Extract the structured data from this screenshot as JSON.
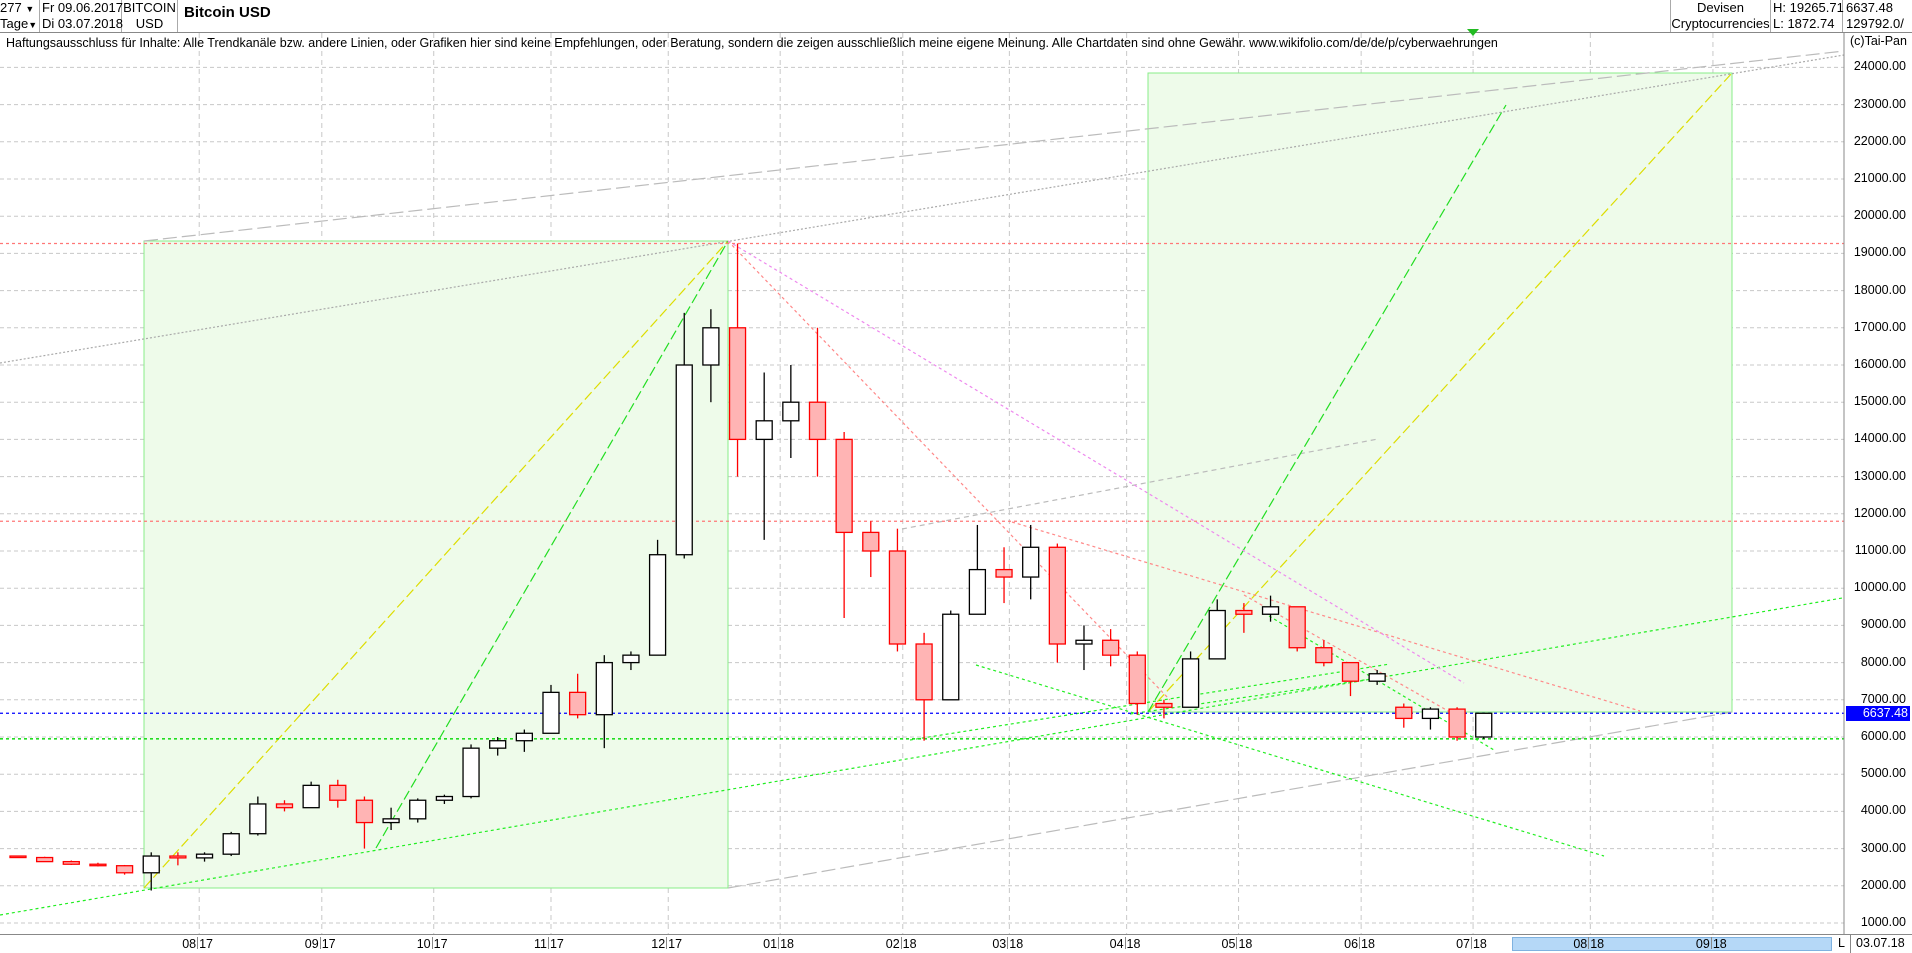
{
  "header": {
    "count": "277",
    "period": "Tage",
    "from_date": "Fr 09.06.2017",
    "to_date": "Di 03.07.2018",
    "symbol_line1": "BITCOIN",
    "symbol_line2": "USD",
    "title": "Bitcoin USD",
    "category1": "Devisen",
    "category2": "Cryptocurrencies",
    "high": "H: 19265.71",
    "low": "L: 1872.74",
    "last": "6637.48",
    "volume": "129792.0/"
  },
  "disclaimer": "Haftungsausschluss für Inhalte: Alle Trendkanäle bzw. andere Linien, oder Grafiken hier sind keine Empfehlungen, oder Beratung, sondern die zeigen ausschließlich meine eigene Meinung. Alle Chartdaten sind ohne Gewähr.  www.wikifolio.com/de/de/p/cyberwaehrungen",
  "copyright": "(c)Tai-Pan",
  "footer": {
    "range_flag": "L",
    "end_date": "03.07.18"
  },
  "colors": {
    "up": "#000000",
    "down": "#ff0000",
    "down_fill": "#ffb4b4",
    "last_price": "#0000ff",
    "box": "#e8fbe6"
  },
  "chart_data": {
    "type": "candlestick",
    "title": "Bitcoin USD",
    "start_date": "09.06.17",
    "ylim": [
      1000,
      24000
    ],
    "grid": true,
    "yticks": [
      "24000.00",
      "23000.00",
      "22000.00",
      "21000.00",
      "20000.00",
      "19000.00",
      "18000.00",
      "17000.00",
      "16000.00",
      "15000.00",
      "14000.00",
      "13000.00",
      "12000.00",
      "11000.00",
      "10000.00",
      "9000.00",
      "8000.00",
      "7000.00",
      "6000.00",
      "5000.00",
      "4000.00",
      "3000.00",
      "2000.00",
      "1000.00"
    ],
    "xticks": [
      {
        "m": "08",
        "y": "17",
        "date": "01.08.17"
      },
      {
        "m": "09",
        "y": "17",
        "date": "01.09.17"
      },
      {
        "m": "10",
        "y": "17",
        "date": "02.10.17"
      },
      {
        "m": "11",
        "y": "17",
        "date": "01.11.17"
      },
      {
        "m": "12",
        "y": "17",
        "date": "01.12.17"
      },
      {
        "m": "01",
        "y": "18",
        "date": "01.01.18"
      },
      {
        "m": "02",
        "y": "18",
        "date": "01.02.18"
      },
      {
        "m": "03",
        "y": "18",
        "date": "01.03.18"
      },
      {
        "m": "04",
        "y": "18",
        "date": "02.04.18"
      },
      {
        "m": "05",
        "y": "18",
        "date": "01.05.18"
      },
      {
        "m": "06",
        "y": "18",
        "date": "01.06.18"
      },
      {
        "m": "07",
        "y": "18",
        "date": "02.07.18"
      },
      {
        "m": "08",
        "y": "18",
        "date": "01.08.18"
      },
      {
        "m": "09",
        "y": "18",
        "date": "03.09.18"
      }
    ],
    "last_price": "6637.48",
    "hlines": [
      19265.71,
      11800,
      6637.48,
      5950
    ],
    "candles_columns": [
      "week",
      "open",
      "high",
      "low",
      "close"
    ],
    "candles": [
      [
        "12.06.17",
        2800,
        2800,
        2750,
        2760
      ],
      [
        "19.06.17",
        2760,
        2780,
        2640,
        2650
      ],
      [
        "26.06.17",
        2650,
        2680,
        2560,
        2580
      ],
      [
        "03.07.17",
        2580,
        2620,
        2520,
        2540
      ],
      [
        "10.07.17",
        2540,
        2560,
        2300,
        2350
      ],
      [
        "17.07.17",
        2350,
        2900,
        1873,
        2800
      ],
      [
        "24.07.17",
        2800,
        2900,
        2550,
        2750
      ],
      [
        "31.07.17",
        2750,
        2900,
        2650,
        2850
      ],
      [
        "07.08.17",
        2850,
        3450,
        2800,
        3400
      ],
      [
        "14.08.17",
        3400,
        4400,
        3350,
        4200
      ],
      [
        "21.08.17",
        4200,
        4300,
        4000,
        4100
      ],
      [
        "28.08.17",
        4100,
        4800,
        4100,
        4700
      ],
      [
        "04.09.17",
        4700,
        4850,
        4100,
        4300
      ],
      [
        "11.09.17",
        4300,
        4400,
        3000,
        3700
      ],
      [
        "18.09.17",
        3700,
        4100,
        3500,
        3800
      ],
      [
        "25.09.17",
        3800,
        4350,
        3700,
        4300
      ],
      [
        "02.10.17",
        4300,
        4450,
        4200,
        4400
      ],
      [
        "09.10.17",
        4400,
        5800,
        4350,
        5700
      ],
      [
        "16.10.17",
        5700,
        6000,
        5500,
        5900
      ],
      [
        "23.10.17",
        5900,
        6200,
        5600,
        6100
      ],
      [
        "30.10.17",
        6100,
        7400,
        6100,
        7200
      ],
      [
        "06.11.17",
        7200,
        7700,
        6500,
        6600
      ],
      [
        "13.11.17",
        6600,
        8200,
        5700,
        8000
      ],
      [
        "20.11.17",
        8000,
        8300,
        7800,
        8200
      ],
      [
        "27.11.17",
        8200,
        11300,
        8200,
        10900
      ],
      [
        "04.12.17",
        10900,
        17400,
        10800,
        16000
      ],
      [
        "11.12.17",
        16000,
        17500,
        15000,
        17000
      ],
      [
        "18.12.17",
        17000,
        19265.71,
        13000,
        14000
      ],
      [
        "25.12.17",
        14000,
        15800,
        11300,
        14500
      ],
      [
        "01.01.18",
        14500,
        16000,
        13500,
        15000
      ],
      [
        "08.01.18",
        15000,
        17000,
        13000,
        14000
      ],
      [
        "15.01.18",
        14000,
        14200,
        9200,
        11500
      ],
      [
        "22.01.18",
        11500,
        11800,
        10300,
        11000
      ],
      [
        "29.01.18",
        11000,
        11600,
        8300,
        8500
      ],
      [
        "05.02.18",
        8500,
        8800,
        5900,
        7000
      ],
      [
        "12.02.18",
        7000,
        9400,
        7000,
        9300
      ],
      [
        "19.02.18",
        9300,
        11700,
        9300,
        10500
      ],
      [
        "26.02.18",
        10500,
        11100,
        9600,
        10300
      ],
      [
        "05.03.18",
        10300,
        11700,
        9700,
        11100
      ],
      [
        "12.03.18",
        11100,
        11200,
        8000,
        8500
      ],
      [
        "19.03.18",
        8500,
        9000,
        7800,
        8600
      ],
      [
        "26.03.18",
        8600,
        8900,
        7900,
        8200
      ],
      [
        "02.04.18",
        8200,
        8300,
        6600,
        6900
      ],
      [
        "09.04.18",
        6900,
        7000,
        6500,
        6800
      ],
      [
        "16.04.18",
        6800,
        8300,
        6800,
        8100
      ],
      [
        "23.04.18",
        8100,
        9700,
        8100,
        9400
      ],
      [
        "30.04.18",
        9400,
        9600,
        8800,
        9300
      ],
      [
        "07.05.18",
        9300,
        9800,
        9100,
        9500
      ],
      [
        "14.05.18",
        9500,
        9500,
        8300,
        8400
      ],
      [
        "21.05.18",
        8400,
        8600,
        7900,
        8000
      ],
      [
        "28.05.18",
        8000,
        8000,
        7100,
        7500
      ],
      [
        "04.06.18",
        7500,
        7800,
        7400,
        7700
      ],
      [
        "11.06.18",
        6800,
        6900,
        6250,
        6500
      ],
      [
        "18.06.18",
        6500,
        6800,
        6200,
        6750
      ],
      [
        "25.06.18",
        6750,
        6800,
        5900,
        6000
      ],
      [
        "02.07.18",
        6000,
        6650,
        5950,
        6637.48
      ]
    ]
  }
}
